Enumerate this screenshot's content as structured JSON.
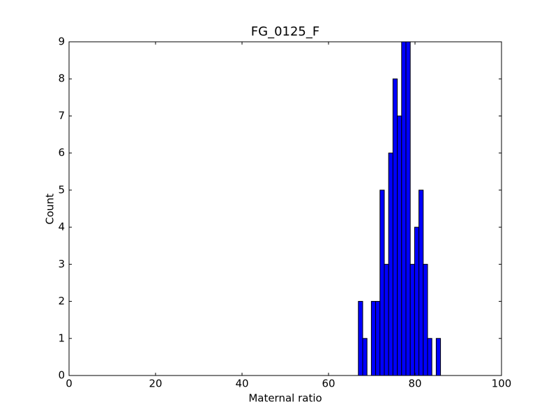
{
  "chart_data": {
    "type": "histogram",
    "title": "FG_0125_F",
    "x_label": "Maternal ratio",
    "y_label": "Count",
    "bins": [
      66.9,
      67.9,
      68.9,
      69.9,
      70.9,
      71.9,
      72.9,
      73.9,
      74.9,
      75.9,
      76.9,
      77.9,
      78.9,
      79.9,
      80.9,
      81.9,
      82.9,
      83.9,
      84.9,
      85.9
    ],
    "counts": [
      2,
      1,
      0,
      2,
      2,
      5,
      3,
      6,
      8,
      7,
      9,
      9,
      3,
      4,
      5,
      3,
      1,
      0,
      1
    ],
    "color": "#0000ff",
    "edgecolor": "#000000",
    "xlim": [
      0,
      100
    ],
    "xticks": [
      0,
      20,
      40,
      60,
      80,
      100
    ],
    "ylim": [
      0,
      9
    ],
    "yticks": [
      0,
      1,
      2,
      3,
      4,
      5,
      6,
      7,
      8,
      9
    ]
  }
}
